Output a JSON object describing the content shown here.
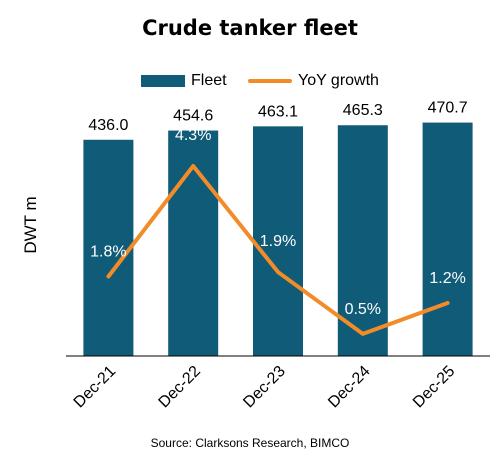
{
  "colors": {
    "bar": "#0F5B78",
    "line": "#F28C28",
    "axis": "#000000",
    "text_on_bar": "#FFFFFF"
  },
  "source": "Source: Clarksons Research, BIMCO",
  "chart_data": {
    "type": "bar",
    "title": "Crude tanker fleet",
    "xlabel": "",
    "ylabel": "DWT m",
    "categories": [
      "Dec-21",
      "Dec-22",
      "Dec-23",
      "Dec-24",
      "Dec-25"
    ],
    "series": [
      {
        "name": "Fleet",
        "type": "bar",
        "axis": "left",
        "values": [
          436.0,
          454.6,
          463.1,
          465.3,
          470.7
        ],
        "labels": [
          "436.0",
          "454.6",
          "463.1",
          "465.3",
          "470.7"
        ]
      },
      {
        "name": "YoY growth",
        "type": "line",
        "axis": "right",
        "values": [
          1.8,
          4.3,
          1.9,
          0.5,
          1.2
        ],
        "labels": [
          "1.8%",
          "4.3%",
          "1.9%",
          "0.5%",
          "1.2%"
        ]
      }
    ],
    "ylim": [
      0,
      490
    ],
    "y2lim": [
      0,
      5.5
    ],
    "legend": "top",
    "grid": false
  }
}
